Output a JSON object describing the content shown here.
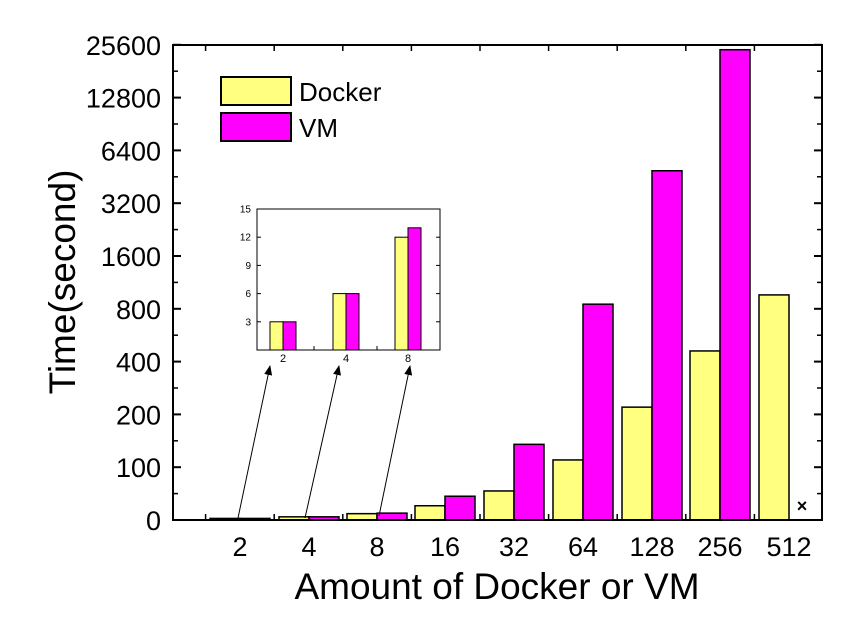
{
  "chart_data": [
    {
      "type": "bar",
      "xlabel": "Amount of Docker or VM",
      "ylabel": "Time(second)",
      "yscale": "piecewise: linear 0-100, log2 100-25600",
      "ylim": [
        0,
        25600
      ],
      "yticks": [
        "0",
        "100",
        "200",
        "400",
        "800",
        "1600",
        "3200",
        "6400",
        "12800",
        "25600"
      ],
      "categories": [
        "2",
        "4",
        "8",
        "16",
        "32",
        "64",
        "128",
        "256",
        "512"
      ],
      "series": [
        {
          "name": "Docker",
          "color": "#ffff80",
          "values": [
            3,
            6,
            12,
            27,
            55,
            110,
            220,
            460,
            960
          ]
        },
        {
          "name": "VM",
          "color": "#ff00ff",
          "values": [
            3,
            6,
            13,
            45,
            135,
            850,
            4900,
            24000,
            null
          ]
        }
      ],
      "missing_marker": "×",
      "legend": "top-left",
      "grid": false
    },
    {
      "type": "bar",
      "inset": true,
      "categories": [
        "2",
        "4",
        "8"
      ],
      "ylim": [
        0,
        15
      ],
      "yticks": [
        "3",
        "6",
        "9",
        "12",
        "15"
      ],
      "series": [
        {
          "name": "Docker",
          "color": "#ffff80",
          "values": [
            3,
            6,
            12
          ]
        },
        {
          "name": "VM",
          "color": "#ff00ff",
          "values": [
            3,
            6,
            13
          ]
        }
      ]
    }
  ]
}
